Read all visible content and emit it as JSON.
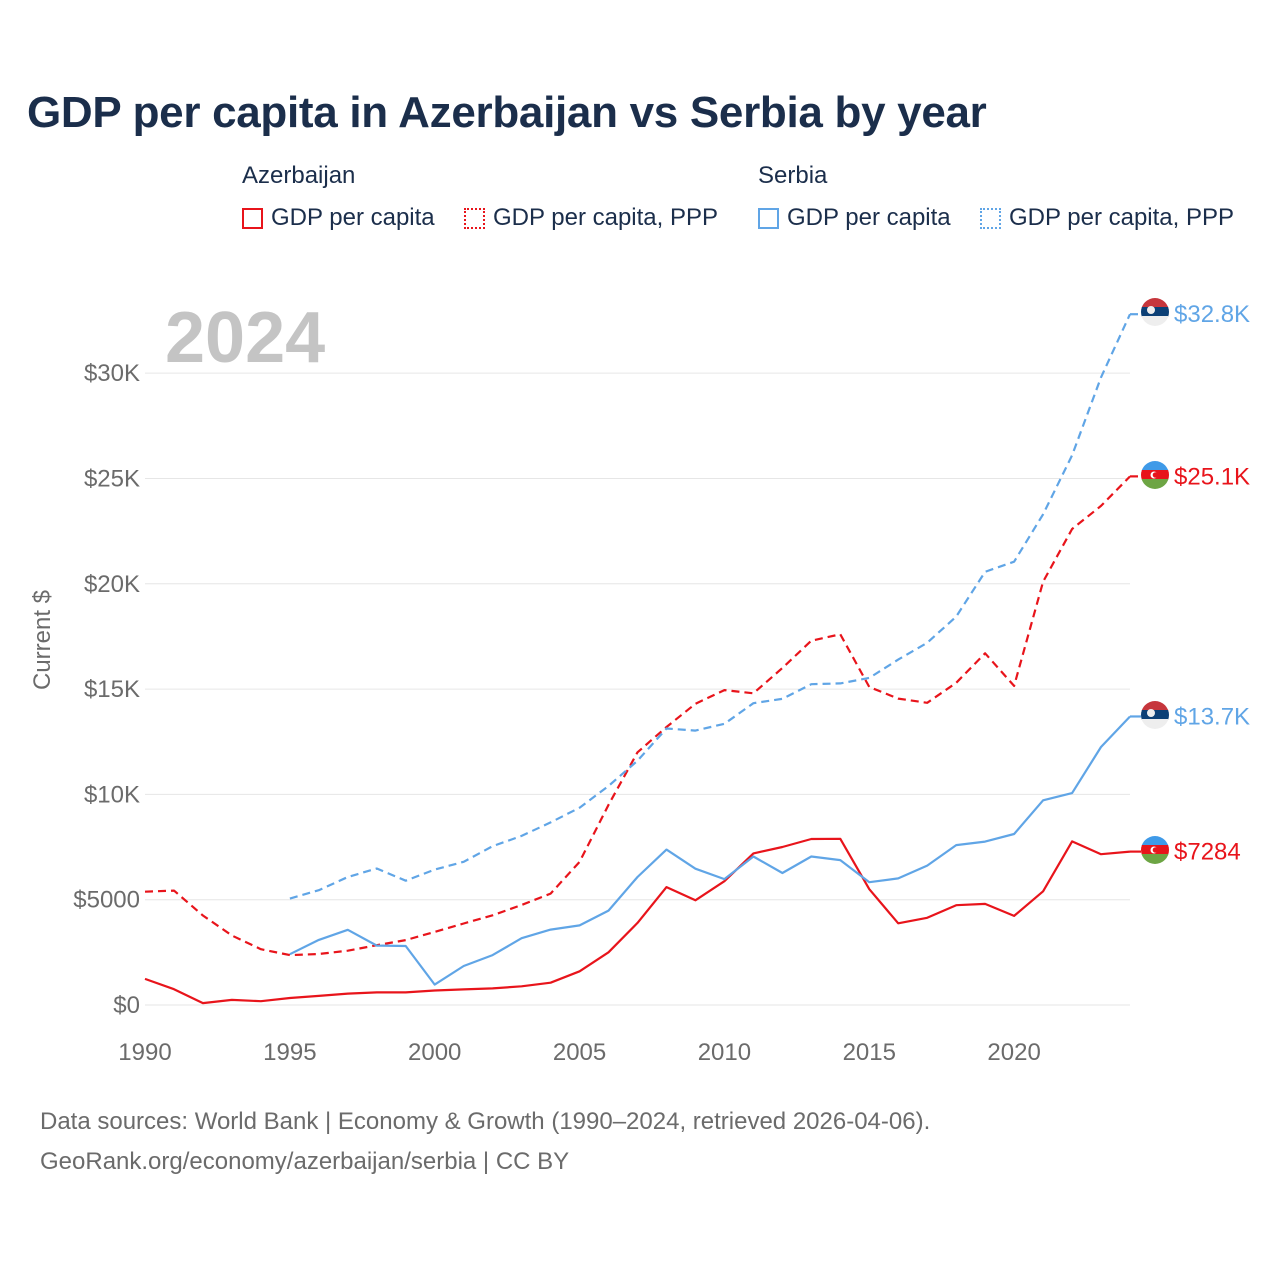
{
  "title": "GDP per capita in Azerbaijan vs Serbia by year",
  "legend": {
    "groups": [
      {
        "name": "Azerbaijan",
        "items": [
          "GDP per capita",
          "GDP per capita, PPP"
        ]
      },
      {
        "name": "Serbia",
        "items": [
          "GDP per capita",
          "GDP per capita, PPP"
        ]
      }
    ]
  },
  "colors": {
    "azerbaijan": "#e8141b",
    "serbia": "#60a5e6",
    "grid": "#e6e6e6",
    "year_watermark": "#c4c4c4",
    "axis_text": "#6b6b6b"
  },
  "chart_data": {
    "type": "line",
    "year_label": "2024",
    "ylabel": "Current $",
    "xlim": [
      1990,
      2024
    ],
    "ylim": [
      0,
      33000
    ],
    "x_ticks": [
      "1990",
      "1995",
      "2000",
      "2005",
      "2010",
      "2015",
      "2020"
    ],
    "y_ticks": [
      {
        "value": 0,
        "label": "$0"
      },
      {
        "value": 5000,
        "label": "$5000"
      },
      {
        "value": 10000,
        "label": "$10K"
      },
      {
        "value": 15000,
        "label": "$15K"
      },
      {
        "value": 20000,
        "label": "$20K"
      },
      {
        "value": 25000,
        "label": "$25K"
      },
      {
        "value": 30000,
        "label": "$30K"
      }
    ],
    "series": [
      {
        "name": "Azerbaijan GDP per capita",
        "country": "azerbaijan",
        "dash": false,
        "end_label": "$7284",
        "x": [
          1990,
          1991,
          1992,
          1993,
          1994,
          1995,
          1996,
          1997,
          1998,
          1999,
          2000,
          2001,
          2002,
          2003,
          2004,
          2005,
          2006,
          2007,
          2008,
          2009,
          2010,
          2011,
          2012,
          2013,
          2014,
          2015,
          2016,
          2017,
          2018,
          2019,
          2020,
          2021,
          2022,
          2023,
          2024
        ],
        "values": [
          1240,
          750,
          90,
          240,
          180,
          330,
          430,
          540,
          600,
          600,
          690,
          740,
          790,
          890,
          1060,
          1600,
          2500,
          3900,
          5600,
          4970,
          5880,
          7200,
          7500,
          7880,
          7890,
          5500,
          3880,
          4140,
          4740,
          4800,
          4230,
          5400,
          7770,
          7160,
          7284
        ]
      },
      {
        "name": "Azerbaijan GDP per capita, PPP",
        "country": "azerbaijan",
        "dash": true,
        "end_label": "$25.1K",
        "x": [
          1990,
          1991,
          1992,
          1993,
          1994,
          1995,
          1996,
          1997,
          1998,
          1999,
          2000,
          2001,
          2002,
          2003,
          2004,
          2005,
          2006,
          2007,
          2008,
          2009,
          2010,
          2011,
          2012,
          2013,
          2014,
          2015,
          2016,
          2017,
          2018,
          2019,
          2020,
          2021,
          2022,
          2023,
          2024
        ],
        "values": [
          5380,
          5430,
          4250,
          3300,
          2650,
          2370,
          2420,
          2580,
          2840,
          3080,
          3470,
          3870,
          4260,
          4750,
          5290,
          6800,
          9500,
          12000,
          13200,
          14300,
          14950,
          14800,
          16000,
          17300,
          17600,
          15100,
          14550,
          14350,
          15300,
          16700,
          15150,
          20100,
          22600,
          23700,
          25100
        ]
      },
      {
        "name": "Serbia GDP per capita",
        "country": "serbia",
        "dash": false,
        "end_label": "$13.7K",
        "x": [
          1995,
          1996,
          1997,
          1998,
          1999,
          2000,
          2001,
          2002,
          2003,
          2004,
          2005,
          2006,
          2007,
          2008,
          2009,
          2010,
          2011,
          2012,
          2013,
          2014,
          2015,
          2016,
          2017,
          2018,
          2019,
          2020,
          2021,
          2022,
          2023,
          2024
        ],
        "values": [
          2410,
          3090,
          3570,
          2820,
          2800,
          970,
          1850,
          2370,
          3170,
          3580,
          3780,
          4480,
          6080,
          7380,
          6470,
          5980,
          7050,
          6270,
          7050,
          6880,
          5830,
          6010,
          6620,
          7590,
          7760,
          8120,
          9720,
          10060,
          12250,
          13700
        ]
      },
      {
        "name": "Serbia GDP per capita, PPP",
        "country": "serbia",
        "dash": true,
        "end_label": "$32.8K",
        "x": [
          1995,
          1996,
          1997,
          1998,
          1999,
          2000,
          2001,
          2002,
          2003,
          2004,
          2005,
          2006,
          2007,
          2008,
          2009,
          2010,
          2011,
          2012,
          2013,
          2014,
          2015,
          2016,
          2017,
          2018,
          2019,
          2020,
          2021,
          2022,
          2023,
          2024
        ],
        "values": [
          5050,
          5450,
          6080,
          6480,
          5900,
          6430,
          6800,
          7540,
          8030,
          8670,
          9370,
          10400,
          11600,
          13130,
          13030,
          13350,
          14330,
          14540,
          15230,
          15270,
          15530,
          16400,
          17200,
          18440,
          20570,
          21050,
          23300,
          26100,
          29800,
          32800
        ]
      }
    ]
  },
  "footer": {
    "line1": "Data sources: World Bank | Economy & Growth (1990–2024, retrieved 2026-04-06).",
    "line2": "GeoRank.org/economy/azerbaijan/serbia | CC BY"
  }
}
